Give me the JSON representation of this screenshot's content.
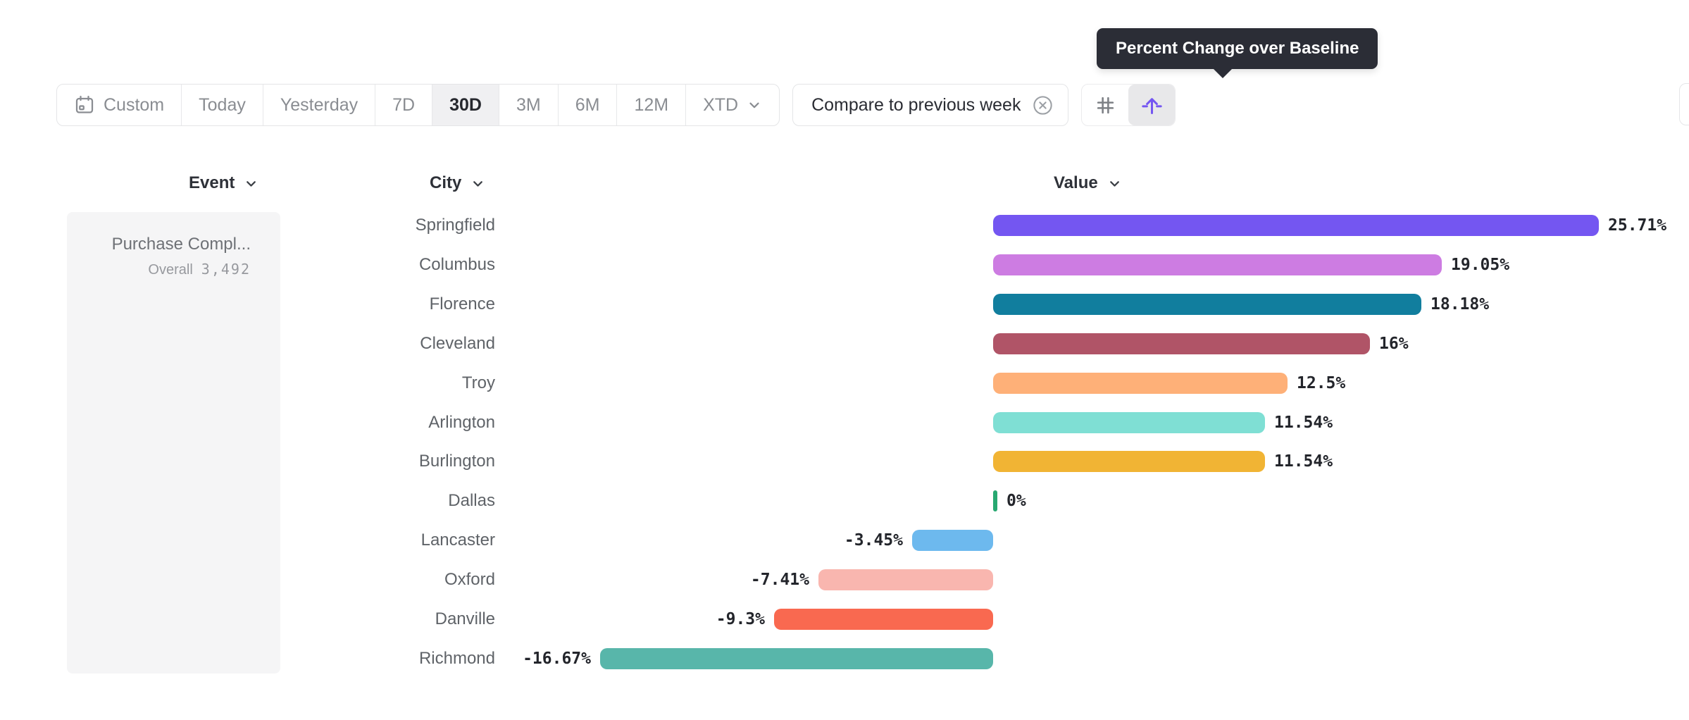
{
  "tooltip": {
    "text": "Percent Change over Baseline"
  },
  "toolbar": {
    "date_ranges": {
      "custom": "Custom",
      "today": "Today",
      "yesterday": "Yesterday",
      "d7": "7D",
      "d30": "30D",
      "m3": "3M",
      "m6": "6M",
      "m12": "12M",
      "xtd": "XTD"
    },
    "selected_range": "30D",
    "compare_button": {
      "label": "Compare to previous week"
    },
    "view_toggle": {
      "left_icon": "grid-icon",
      "right_icon": "percent-change-icon",
      "selected": "percent-change"
    }
  },
  "columns": {
    "event": "Event",
    "city": "City",
    "value": "Value"
  },
  "event_panel": {
    "event_name": "Purchase Compl...",
    "overall_label": "Overall",
    "overall_value": "3,492"
  },
  "chart_data": {
    "type": "bar",
    "orientation": "horizontal",
    "title": "Percent Change over Baseline",
    "value_format": "percent",
    "baseline": 0,
    "xlim": [
      -20,
      30
    ],
    "grid": false,
    "categories": [
      "Springfield",
      "Columbus",
      "Florence",
      "Cleveland",
      "Troy",
      "Arlington",
      "Burlington",
      "Dallas",
      "Lancaster",
      "Oxford",
      "Danville",
      "Richmond"
    ],
    "values": [
      25.71,
      19.05,
      18.18,
      16,
      12.5,
      11.54,
      11.54,
      0,
      -3.45,
      -7.41,
      -9.3,
      -16.67
    ],
    "value_labels": [
      "25.71%",
      "19.05%",
      "18.18%",
      "16%",
      "12.5%",
      "11.54%",
      "11.54%",
      "0%",
      "-3.45%",
      "-7.41%",
      "-9.3%",
      "-16.67%"
    ],
    "bar_colors": [
      "#7456f1",
      "#cd7ce2",
      "#117e9e",
      "#b05467",
      "#feb078",
      "#7fdfd4",
      "#f1b434",
      "#27a871",
      "#6db9ee",
      "#f9b6af",
      "#f96950",
      "#58b6aa"
    ]
  },
  "colors": {
    "accent_purple": "#7456f1",
    "zero_green": "#27a871",
    "tooltip_bg": "#2b2d36",
    "panel_bg": "#f5f5f6",
    "border": "#e4e5e7",
    "muted_text": "#8a8d92"
  }
}
